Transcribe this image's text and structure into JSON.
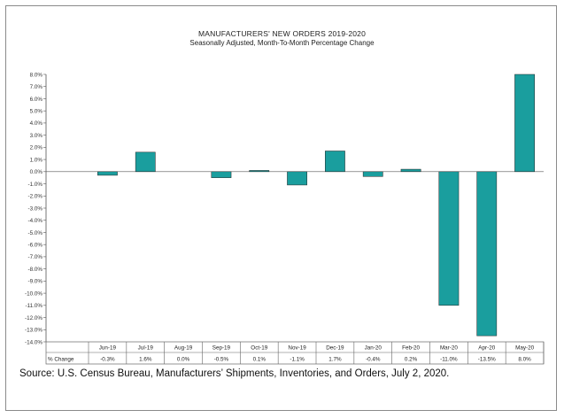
{
  "chart_data": {
    "type": "bar",
    "title": "MANUFACTURERS' NEW ORDERS 2019-2020",
    "subtitle": "Seasonally Adjusted,  Month-To-Month Percentage Change",
    "categories": [
      "Jun-19",
      "Jul-19",
      "Aug-19",
      "Sep-19",
      "Oct-19",
      "Nov-19",
      "Dec-19",
      "Jan-20",
      "Feb-20",
      "Mar-20",
      "Apr-20",
      "May-20"
    ],
    "series": [
      {
        "values": [
          -0.3,
          1.6,
          0.0,
          -0.5,
          0.1,
          -1.1,
          1.7,
          -0.4,
          0.2,
          -11.0,
          -13.5,
          8.0
        ]
      }
    ],
    "value_labels": [
      "-0.3%",
      "1.6%",
      "0.0%",
      "-0.5%",
      "0.1%",
      "-1.1%",
      "1.7%",
      "-0.4%",
      "0.2%",
      "-11.0%",
      "-13.5%",
      "8.0%"
    ],
    "table_row_label": "% Change",
    "ylim": [
      -14,
      8
    ],
    "yticks": [
      8,
      7,
      6,
      5,
      4,
      3,
      2,
      1,
      0,
      -1,
      -2,
      -3,
      -4,
      -5,
      -6,
      -7,
      -8,
      -9,
      -10,
      -11,
      -12,
      -13,
      -14
    ],
    "ytick_labels": [
      "8.0%",
      "7.0%",
      "6.0%",
      "5.0%",
      "4.0%",
      "3.0%",
      "2.0%",
      "1.0%",
      "0.0%",
      "-1.0%",
      "-2.0%",
      "-3.0%",
      "-4.0%",
      "-5.0%",
      "-6.0%",
      "-7.0%",
      "-8.0%",
      "-9.0%",
      "-10.0%",
      "-11.0%",
      "-12.0%",
      "-13.0%",
      "-14.0%"
    ],
    "grid": false,
    "legend": "none",
    "bar_color": "#1a9e9e"
  },
  "source": {
    "text": "Source: U.S. Census Bureau, Manufacturers’ Shipments, Inventories, and Orders, July 2, 2020."
  }
}
